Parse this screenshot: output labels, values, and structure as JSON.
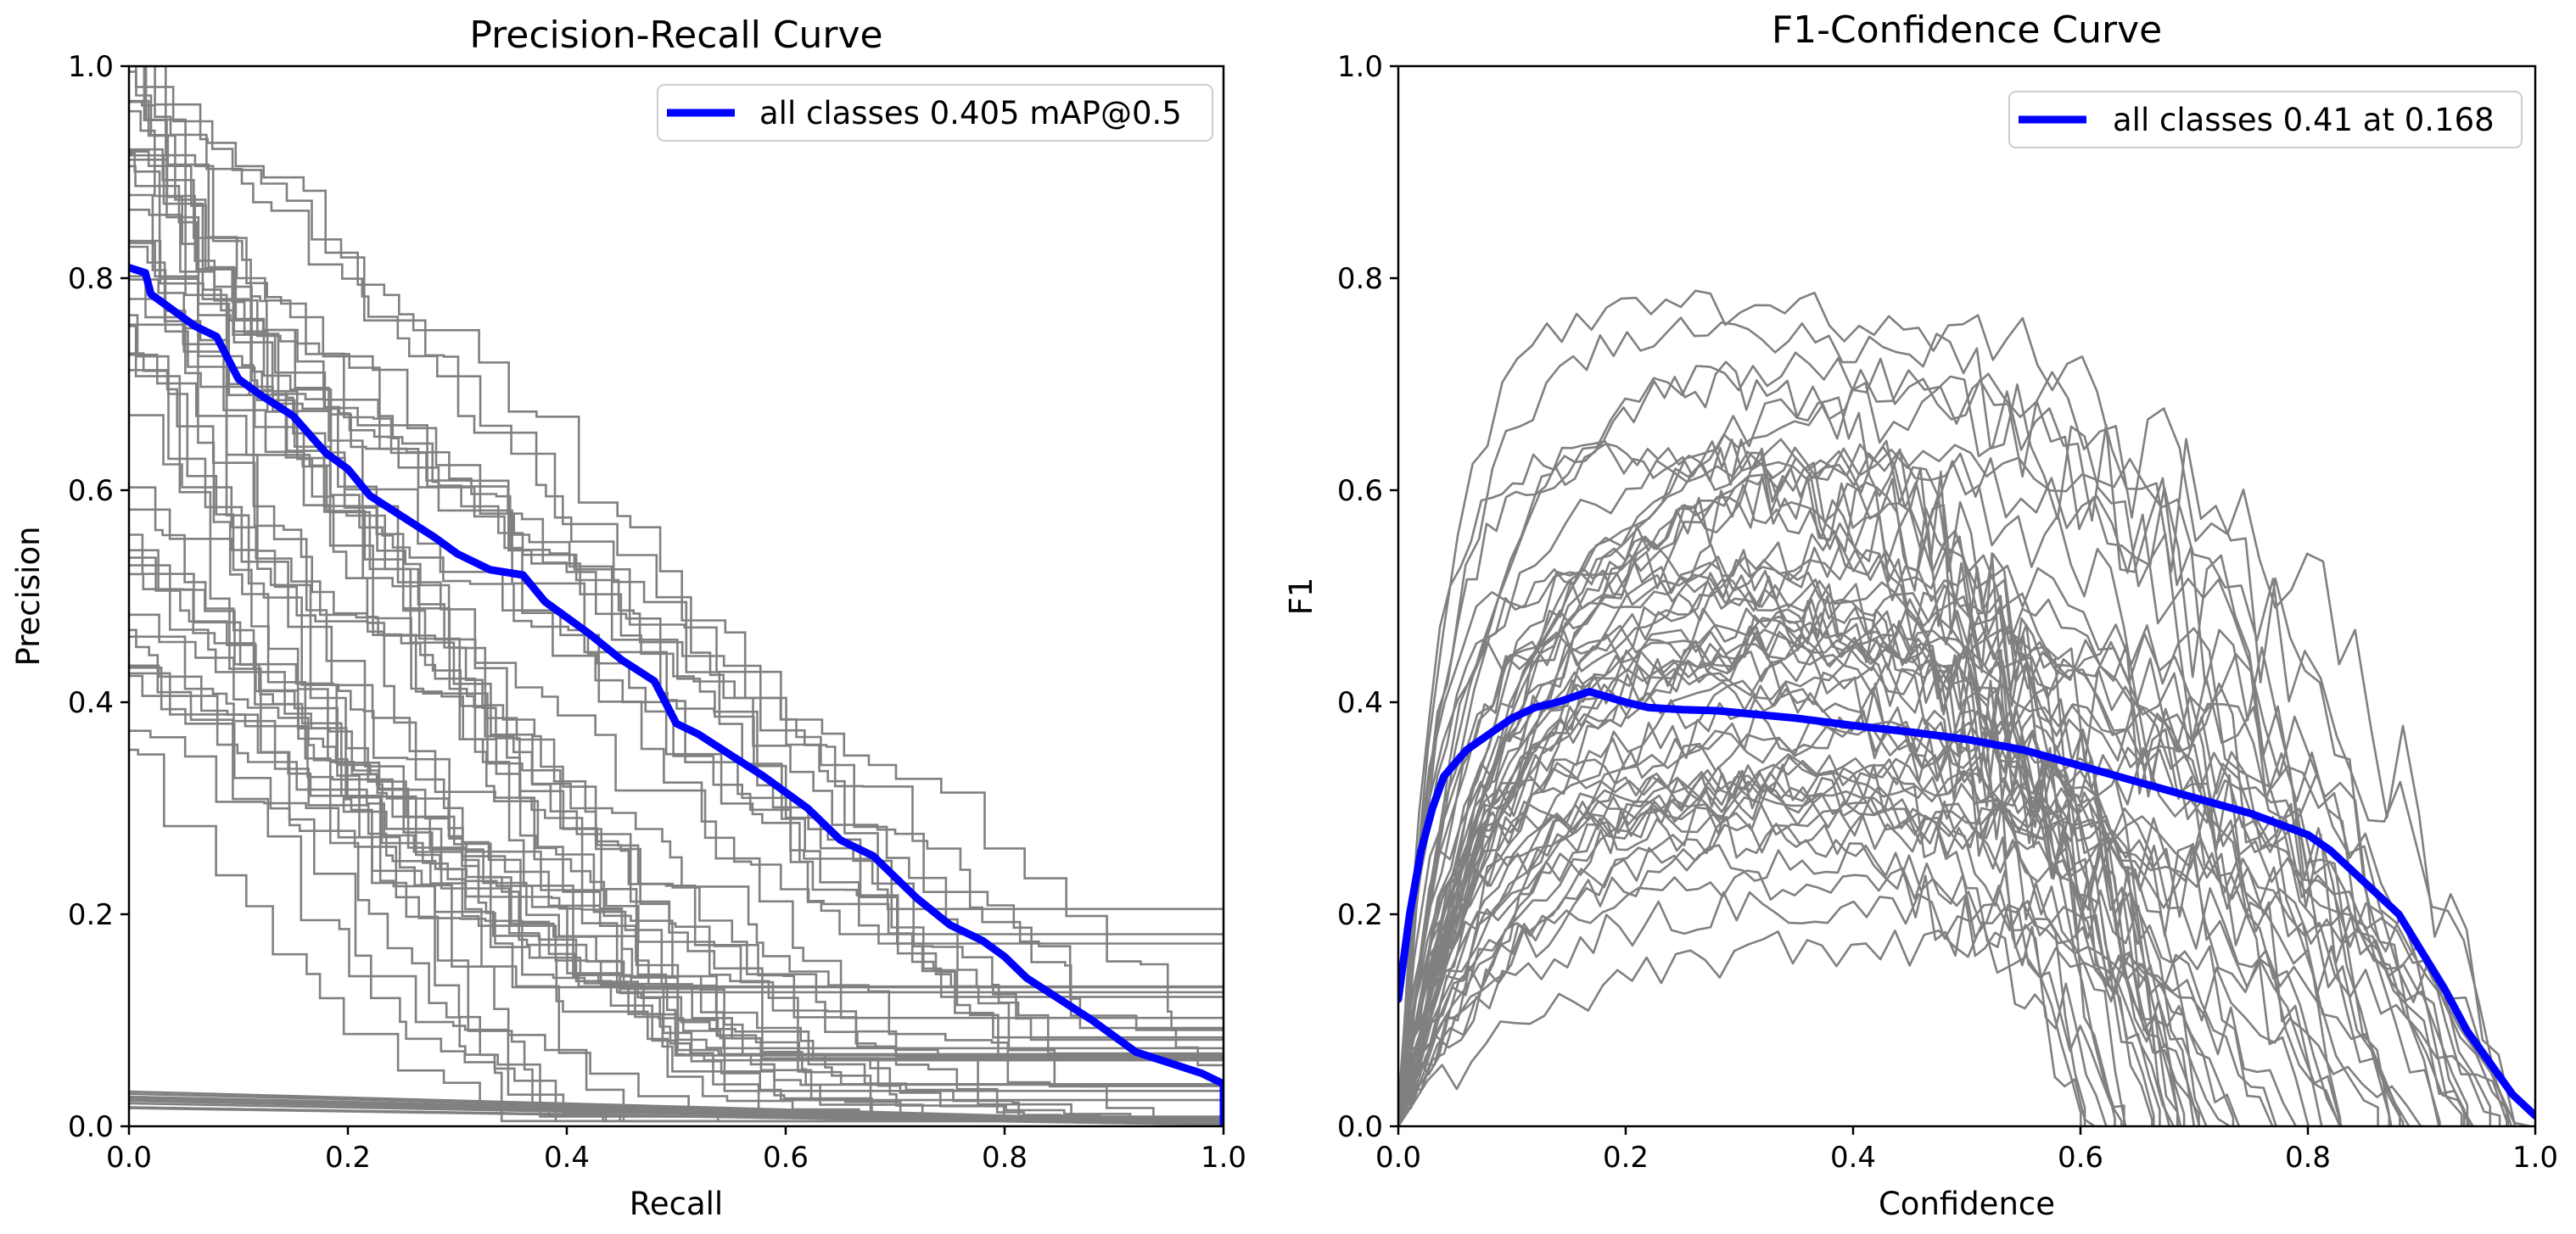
{
  "chart_data": [
    {
      "type": "line",
      "title": "Precision-Recall Curve",
      "xlabel": "Recall",
      "ylabel": "Precision",
      "xlim": [
        0,
        1
      ],
      "ylim": [
        0,
        1
      ],
      "xticks": [
        "0.0",
        "0.2",
        "0.4",
        "0.6",
        "0.8",
        "1.0"
      ],
      "yticks": [
        "0.0",
        "0.2",
        "0.4",
        "0.6",
        "0.8",
        "1.0"
      ],
      "grid": false,
      "legend_position": "upper-right",
      "legend": [
        "all classes 0.405 mAP@0.5"
      ],
      "colors": {
        "per_class": "#808080",
        "all_classes": "#0000ff"
      },
      "series": [
        {
          "name": "all classes 0.405 mAP@0.5",
          "x": [
            0.0,
            0.015,
            0.02,
            0.04,
            0.06,
            0.08,
            0.1,
            0.12,
            0.15,
            0.18,
            0.2,
            0.22,
            0.25,
            0.28,
            0.3,
            0.33,
            0.36,
            0.38,
            0.4,
            0.42,
            0.45,
            0.48,
            0.5,
            0.52,
            0.55,
            0.58,
            0.6,
            0.62,
            0.65,
            0.68,
            0.7,
            0.72,
            0.75,
            0.78,
            0.8,
            0.82,
            0.85,
            0.88,
            0.9,
            0.92,
            0.95,
            0.98,
            1.0,
            1.0
          ],
          "y": [
            0.81,
            0.805,
            0.785,
            0.77,
            0.755,
            0.745,
            0.705,
            0.69,
            0.67,
            0.635,
            0.62,
            0.595,
            0.575,
            0.555,
            0.54,
            0.525,
            0.52,
            0.495,
            0.48,
            0.465,
            0.44,
            0.42,
            0.38,
            0.37,
            0.35,
            0.33,
            0.315,
            0.3,
            0.27,
            0.255,
            0.235,
            0.215,
            0.19,
            0.175,
            0.16,
            0.14,
            0.12,
            0.1,
            0.085,
            0.07,
            0.06,
            0.05,
            0.04,
            0.0
          ]
        }
      ]
    },
    {
      "type": "line",
      "title": "F1-Confidence Curve",
      "xlabel": "Confidence",
      "ylabel": "F1",
      "xlim": [
        0,
        1
      ],
      "ylim": [
        0,
        1
      ],
      "xticks": [
        "0.0",
        "0.2",
        "0.4",
        "0.6",
        "0.8",
        "1.0"
      ],
      "yticks": [
        "0.0",
        "0.2",
        "0.4",
        "0.6",
        "0.8",
        "1.0"
      ],
      "grid": false,
      "legend_position": "upper-right",
      "legend": [
        "all classes 0.41 at 0.168"
      ],
      "colors": {
        "per_class": "#808080",
        "all_classes": "#0000ff"
      },
      "series": [
        {
          "name": "all classes 0.41 at 0.168",
          "x": [
            0.0,
            0.01,
            0.02,
            0.03,
            0.04,
            0.06,
            0.08,
            0.1,
            0.12,
            0.14,
            0.168,
            0.2,
            0.22,
            0.25,
            0.28,
            0.3,
            0.35,
            0.4,
            0.45,
            0.5,
            0.55,
            0.6,
            0.65,
            0.7,
            0.75,
            0.8,
            0.82,
            0.85,
            0.88,
            0.9,
            0.92,
            0.94,
            0.96,
            0.98,
            1.0
          ],
          "y": [
            0.12,
            0.2,
            0.26,
            0.3,
            0.33,
            0.355,
            0.37,
            0.385,
            0.395,
            0.4,
            0.41,
            0.4,
            0.395,
            0.393,
            0.392,
            0.39,
            0.385,
            0.378,
            0.372,
            0.365,
            0.355,
            0.34,
            0.325,
            0.31,
            0.295,
            0.275,
            0.26,
            0.23,
            0.2,
            0.165,
            0.13,
            0.09,
            0.06,
            0.03,
            0.01
          ]
        }
      ]
    }
  ]
}
